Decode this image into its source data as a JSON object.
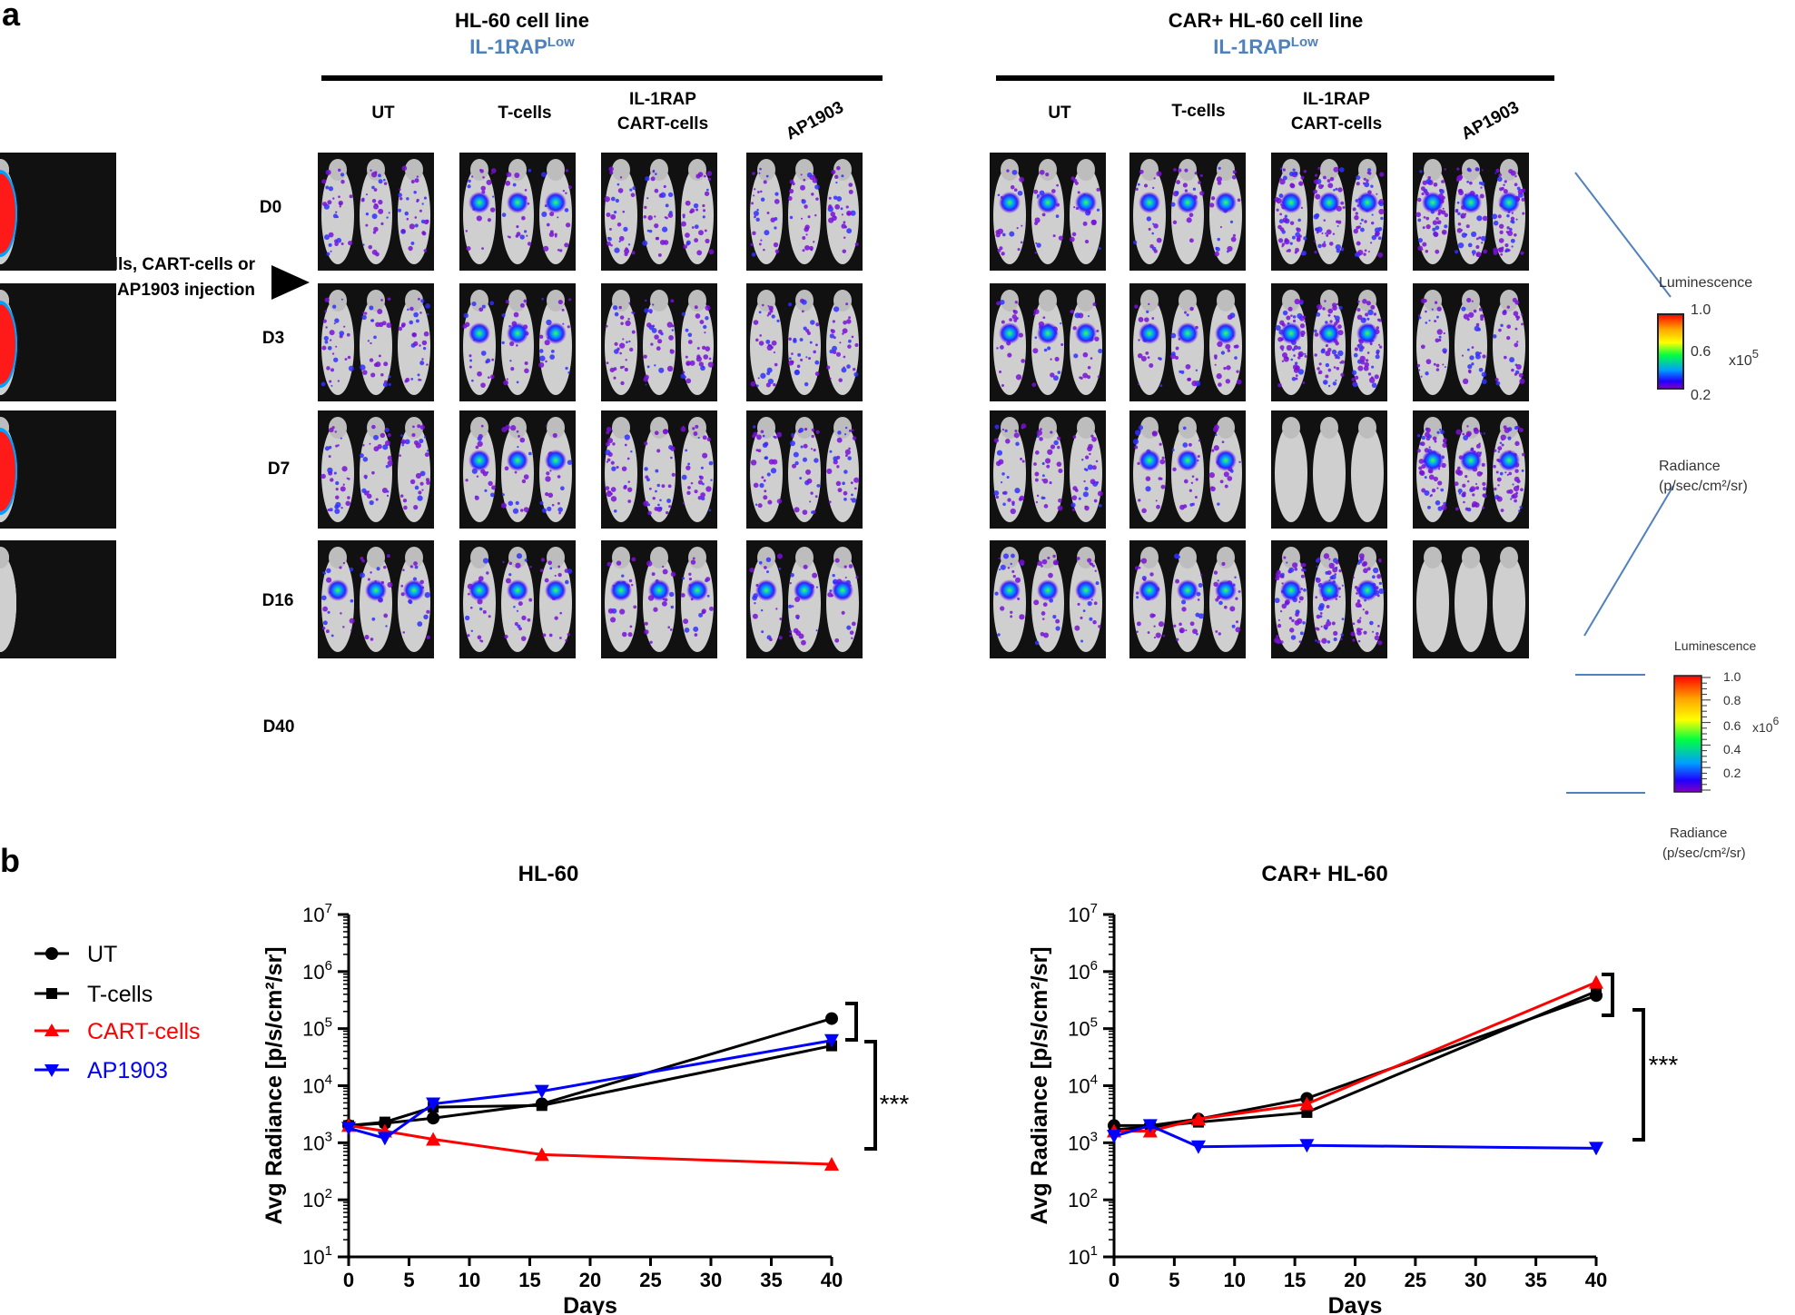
{
  "panel_a": {
    "letter": "a",
    "groups": [
      {
        "title": "HL-60 cell line",
        "subtitle_main": "IL-1RAP",
        "subtitle_sup": "Low"
      },
      {
        "title": "CAR+ HL-60 cell line",
        "subtitle_main": "IL-1RAP",
        "subtitle_sup": "Low"
      }
    ],
    "conditions": [
      "UT",
      "T-cells",
      "IL-1RAP",
      "CART-cells",
      "AP1903"
    ],
    "days": [
      "D0",
      "D3",
      "D7",
      "D16",
      "D40"
    ],
    "injection_label_1": "T-cells, CART-cells or",
    "injection_label_2": "AP1903 injection",
    "scale1": {
      "title": "Luminescence",
      "ticks": [
        "1.0",
        "0.6",
        "0.2"
      ],
      "multiplier": "x10",
      "exponent": "5",
      "radiance_1": "Radiance",
      "radiance_2": "(p/sec/cm²/sr)"
    },
    "scale2": {
      "title": "Luminescence",
      "ticks": [
        "1.0",
        "0.8",
        "0.6",
        "0.4",
        "0.2"
      ],
      "multiplier": "x10",
      "exponent": "6",
      "radiance_1": "Radiance",
      "radiance_2": "(p/sec/cm²/sr)"
    },
    "images": [
      [
        "purple",
        "purple",
        "purple",
        "spot"
      ],
      [
        "spot",
        "spot",
        "spot",
        "spot"
      ],
      [
        "purple",
        "purple",
        "purple",
        "spot"
      ],
      [
        "purple",
        "purple",
        "purple",
        "spot"
      ],
      [
        "spot",
        "spot",
        "purple",
        "spot"
      ],
      [
        "spot",
        "spot",
        "spot",
        "spot"
      ],
      [
        "heavy",
        "heavy",
        "none",
        "heavy"
      ],
      [
        "heavy",
        "purple",
        "heavy",
        "none"
      ],
      [
        "tumor",
        "hot",
        "none",
        "tumor"
      ],
      [
        "tumor",
        "tumor",
        "tumor",
        "none"
      ]
    ]
  },
  "panel_b": {
    "letter": "b",
    "legend": [
      {
        "label": "UT",
        "color": "#000000",
        "marker": "circle"
      },
      {
        "label": "T-cells",
        "color": "#000000",
        "marker": "square"
      },
      {
        "label": "CART-cells",
        "color": "#ff0000",
        "marker": "triangle-up"
      },
      {
        "label": "AP1903",
        "color": "#0000ff",
        "marker": "triangle-down"
      }
    ],
    "significance": "***"
  },
  "chart_data": [
    {
      "type": "line",
      "title": "HL-60",
      "xlabel": "Days",
      "ylabel": "Avg Radiance [p/s/cm²/sr]",
      "xlim": [
        0,
        40
      ],
      "xticks": [
        "0",
        "5",
        "10",
        "15",
        "20",
        "25",
        "30",
        "35",
        "40"
      ],
      "ylim": [
        10,
        10000000
      ],
      "yscale": "log",
      "ytick_base": "10",
      "ytick_exponents": [
        "1",
        "2",
        "3",
        "4",
        "5",
        "6",
        "7"
      ],
      "x": [
        0,
        3,
        7,
        16,
        40
      ],
      "series": [
        {
          "name": "UT",
          "color": "#000000",
          "marker": "circle",
          "values": [
            2000,
            2200,
            2700,
            4800,
            150000
          ]
        },
        {
          "name": "T-cells",
          "color": "#000000",
          "marker": "square",
          "values": [
            2000,
            2300,
            4200,
            4500,
            50000
          ]
        },
        {
          "name": "CART-cells",
          "color": "#ff0000",
          "marker": "triangle-up",
          "values": [
            2000,
            1600,
            1150,
            620,
            420
          ]
        },
        {
          "name": "AP1903",
          "color": "#0000ff",
          "marker": "triangle-down",
          "values": [
            1800,
            1200,
            4800,
            8000,
            62000
          ]
        }
      ],
      "significance": "***"
    },
    {
      "type": "line",
      "title": "CAR+ HL-60",
      "xlabel": "Days",
      "ylabel": "Avg Radiance [p/s/cm²/sr]",
      "xlim": [
        0,
        40
      ],
      "xticks": [
        "0",
        "5",
        "10",
        "15",
        "20",
        "25",
        "30",
        "35",
        "40"
      ],
      "ylim": [
        10,
        10000000
      ],
      "yscale": "log",
      "ytick_base": "10",
      "ytick_exponents": [
        "1",
        "2",
        "3",
        "4",
        "5",
        "6",
        "7"
      ],
      "x": [
        0,
        3,
        7,
        16,
        40
      ],
      "series": [
        {
          "name": "UT",
          "color": "#000000",
          "marker": "circle",
          "values": [
            2000,
            2000,
            2600,
            6000,
            380000
          ]
        },
        {
          "name": "T-cells",
          "color": "#000000",
          "marker": "square",
          "values": [
            1700,
            1900,
            2300,
            3400,
            450000
          ]
        },
        {
          "name": "CART-cells",
          "color": "#ff0000",
          "marker": "triangle-up",
          "values": [
            1600,
            1600,
            2600,
            4800,
            650000
          ]
        },
        {
          "name": "AP1903",
          "color": "#0000ff",
          "marker": "triangle-down",
          "values": [
            1300,
            2000,
            850,
            900,
            800
          ]
        }
      ],
      "significance": "***"
    }
  ]
}
